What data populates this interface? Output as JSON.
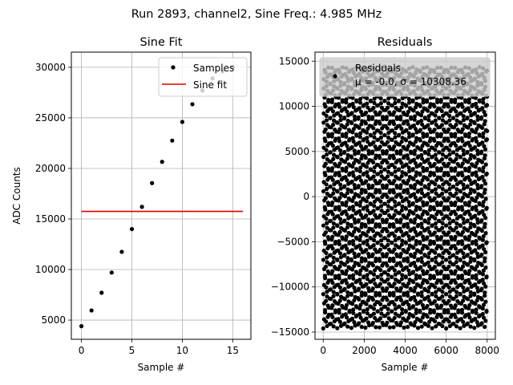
{
  "figure": {
    "suptitle": "Run 2893, channel2, Sine Freq.: 4.985 MHz"
  },
  "colors": {
    "samples": "#000000",
    "fit": "#e00000",
    "grid": "#b0b0b0",
    "legend_face": "#cccccc"
  },
  "chart_data": [
    {
      "type": "scatter",
      "title": "Sine Fit",
      "xlabel": "Sample #",
      "ylabel": "ADC Counts",
      "xlim": [
        -1,
        16.8
      ],
      "ylim": [
        3100,
        31500
      ],
      "xticks": [
        0,
        5,
        10,
        15
      ],
      "yticks": [
        5000,
        10000,
        15000,
        20000,
        25000,
        30000
      ],
      "grid": true,
      "legend": {
        "placement": "top-right",
        "entries": [
          "Samples",
          "Sine fit"
        ]
      },
      "series": [
        {
          "name": "Samples",
          "kind": "scatter",
          "x": [
            0,
            1,
            2,
            3,
            4,
            5,
            6,
            7,
            8,
            9,
            10,
            11,
            12,
            13,
            14,
            15
          ],
          "y": [
            4400,
            5950,
            7700,
            9700,
            11750,
            14000,
            16200,
            18550,
            20650,
            22750,
            24600,
            26350,
            27700,
            28900,
            29600,
            30000
          ]
        },
        {
          "name": "Sine fit",
          "kind": "line",
          "x": [
            0,
            16
          ],
          "y": [
            15750,
            15750
          ]
        }
      ]
    },
    {
      "type": "scatter",
      "title": "Residuals",
      "xlabel": "Sample #",
      "ylabel": "",
      "xlim": [
        -400,
        8400
      ],
      "ylim": [
        -15800,
        16000
      ],
      "xticks": [
        0,
        2000,
        4000,
        6000,
        8000
      ],
      "yticks": [
        -15000,
        -10000,
        -5000,
        0,
        5000,
        10000,
        15000
      ],
      "grid": true,
      "n_points": 8000,
      "residual_range": [
        -14600,
        14400
      ],
      "legend": {
        "placement": "top",
        "entries": [
          "Residuals",
          "μ = -0.0, σ = 10308.36"
        ]
      }
    }
  ]
}
